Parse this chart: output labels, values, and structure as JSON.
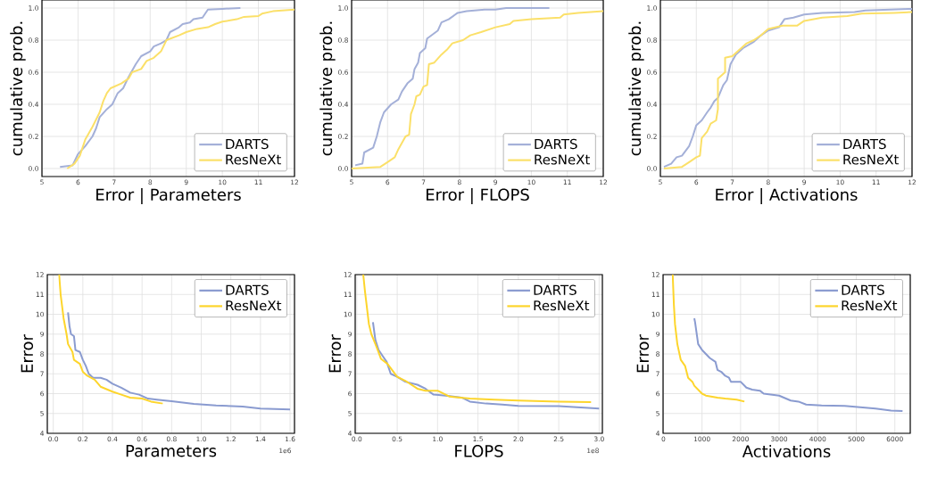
{
  "chart_data": [
    {
      "type": "line",
      "xlabel": "Error | Parameters",
      "ylabel": "cumulative prob.",
      "grid": true,
      "legend": "bottom right",
      "xlim": [
        5,
        12
      ],
      "ylim": [
        -0.05,
        1.05
      ],
      "xticks": [
        5,
        6,
        7,
        8,
        9,
        10,
        11,
        12
      ],
      "yticks": [
        {
          "value": 0,
          "label": "0.0"
        },
        {
          "value": 0.2,
          "label": "0.2"
        },
        {
          "value": 0.4,
          "label": "0.4"
        },
        {
          "value": 0.6,
          "label": "0.6"
        },
        {
          "value": 0.8,
          "label": "0.8"
        },
        {
          "value": 1,
          "label": "1.0"
        }
      ],
      "series": [
        {
          "name": "DARTS",
          "color": "#a4b0d8",
          "x": [
            5.5,
            5.85,
            6.0,
            6.2,
            6.4,
            6.5,
            6.6,
            6.8,
            6.95,
            7.1,
            7.25,
            7.4,
            7.5,
            7.6,
            7.75,
            8.0,
            8.1,
            8.3,
            8.45,
            8.55,
            8.8,
            8.9,
            9.1,
            9.2,
            9.45,
            9.6,
            10.0,
            10.5
          ],
          "values": [
            0.01,
            0.02,
            0.09,
            0.14,
            0.2,
            0.25,
            0.32,
            0.37,
            0.4,
            0.47,
            0.5,
            0.57,
            0.61,
            0.65,
            0.7,
            0.73,
            0.76,
            0.78,
            0.8,
            0.85,
            0.88,
            0.9,
            0.91,
            0.93,
            0.94,
            0.99,
            0.995,
            1.0
          ]
        },
        {
          "name": "ResNeXt",
          "color": "#fbe069",
          "x": [
            5.7,
            5.9,
            6.05,
            6.2,
            6.4,
            6.6,
            6.7,
            6.8,
            6.9,
            7.2,
            7.4,
            7.5,
            7.75,
            7.9,
            8.1,
            8.3,
            8.45,
            8.8,
            9.0,
            9.3,
            9.6,
            9.8,
            10.0,
            10.4,
            10.6,
            11.0,
            11.1,
            11.4,
            12.0
          ],
          "values": [
            0.0,
            0.03,
            0.08,
            0.18,
            0.26,
            0.35,
            0.42,
            0.47,
            0.5,
            0.53,
            0.56,
            0.6,
            0.62,
            0.67,
            0.69,
            0.73,
            0.8,
            0.83,
            0.85,
            0.87,
            0.88,
            0.9,
            0.915,
            0.93,
            0.945,
            0.95,
            0.965,
            0.98,
            0.99
          ]
        }
      ]
    },
    {
      "type": "line",
      "xlabel": "Error | FLOPS",
      "ylabel": "cumulative prob.",
      "grid": true,
      "legend": "bottom right",
      "xlim": [
        5,
        12
      ],
      "ylim": [
        -0.05,
        1.05
      ],
      "xticks": [
        5,
        6,
        7,
        8,
        9,
        10,
        11,
        12
      ],
      "yticks": [
        {
          "value": 0,
          "label": "0.0"
        },
        {
          "value": 0.2,
          "label": "0.2"
        },
        {
          "value": 0.4,
          "label": "0.4"
        },
        {
          "value": 0.6,
          "label": "0.6"
        },
        {
          "value": 0.8,
          "label": "0.8"
        },
        {
          "value": 1,
          "label": "1.0"
        }
      ],
      "series": [
        {
          "name": "DARTS",
          "color": "#a4b0d8",
          "x": [
            5.1,
            5.3,
            5.35,
            5.6,
            5.7,
            5.8,
            5.9,
            6.1,
            6.3,
            6.4,
            6.55,
            6.7,
            6.75,
            6.85,
            6.9,
            7.05,
            7.1,
            7.4,
            7.5,
            7.7,
            7.95,
            8.2,
            8.7,
            9.0,
            9.3,
            10.5
          ],
          "values": [
            0.02,
            0.03,
            0.1,
            0.13,
            0.2,
            0.29,
            0.35,
            0.4,
            0.43,
            0.48,
            0.53,
            0.56,
            0.62,
            0.66,
            0.72,
            0.75,
            0.81,
            0.86,
            0.91,
            0.93,
            0.97,
            0.98,
            0.99,
            0.99,
            1.0,
            1.0
          ]
        },
        {
          "name": "ResNeXt",
          "color": "#fbe069",
          "x": [
            5.0,
            5.8,
            6.0,
            6.2,
            6.3,
            6.5,
            6.6,
            6.65,
            6.75,
            6.8,
            6.9,
            7.0,
            7.1,
            7.15,
            7.3,
            7.5,
            7.65,
            7.8,
            8.1,
            8.3,
            8.6,
            9.0,
            9.4,
            9.5,
            10.0,
            10.8,
            10.9,
            11.3,
            12.0
          ],
          "values": [
            0.0,
            0.01,
            0.04,
            0.07,
            0.12,
            0.2,
            0.21,
            0.34,
            0.4,
            0.45,
            0.46,
            0.51,
            0.52,
            0.65,
            0.66,
            0.71,
            0.74,
            0.78,
            0.8,
            0.83,
            0.85,
            0.88,
            0.9,
            0.92,
            0.93,
            0.94,
            0.96,
            0.97,
            0.98
          ]
        }
      ]
    },
    {
      "type": "line",
      "xlabel": "Error | Activations",
      "ylabel": "cumulative prob.",
      "grid": true,
      "legend": "bottom right",
      "xlim": [
        5,
        12
      ],
      "ylim": [
        -0.05,
        1.05
      ],
      "xticks": [
        5,
        6,
        7,
        8,
        9,
        10,
        11,
        12
      ],
      "yticks": [
        {
          "value": 0,
          "label": "0.0"
        },
        {
          "value": 0.2,
          "label": "0.2"
        },
        {
          "value": 0.4,
          "label": "0.4"
        },
        {
          "value": 0.6,
          "label": "0.6"
        },
        {
          "value": 0.8,
          "label": "0.8"
        },
        {
          "value": 1,
          "label": "1.0"
        }
      ],
      "series": [
        {
          "name": "DARTS",
          "color": "#a4b0d8",
          "x": [
            5.1,
            5.3,
            5.45,
            5.6,
            5.8,
            5.9,
            6.0,
            6.15,
            6.3,
            6.4,
            6.5,
            6.6,
            6.75,
            6.85,
            6.95,
            7.1,
            7.3,
            7.6,
            7.8,
            8.0,
            8.3,
            8.45,
            8.7,
            9.0,
            9.5,
            10.4,
            10.7,
            12.0
          ],
          "values": [
            0.01,
            0.03,
            0.07,
            0.08,
            0.14,
            0.2,
            0.27,
            0.3,
            0.35,
            0.38,
            0.42,
            0.44,
            0.52,
            0.55,
            0.65,
            0.71,
            0.75,
            0.79,
            0.83,
            0.86,
            0.88,
            0.93,
            0.94,
            0.96,
            0.97,
            0.975,
            0.985,
            0.995
          ]
        },
        {
          "name": "ResNeXt",
          "color": "#fbe069",
          "x": [
            5.1,
            5.6,
            5.8,
            6.0,
            6.1,
            6.15,
            6.3,
            6.4,
            6.55,
            6.6,
            6.6,
            6.8,
            6.8,
            7.0,
            7.2,
            7.4,
            7.6,
            7.8,
            8.0,
            8.4,
            8.8,
            9.0,
            9.5,
            10.2,
            10.6,
            11.5,
            12.0
          ],
          "values": [
            0.0,
            0.01,
            0.04,
            0.07,
            0.08,
            0.19,
            0.23,
            0.28,
            0.3,
            0.37,
            0.56,
            0.6,
            0.69,
            0.7,
            0.74,
            0.78,
            0.8,
            0.83,
            0.87,
            0.89,
            0.89,
            0.92,
            0.94,
            0.95,
            0.965,
            0.97,
            0.975
          ]
        }
      ]
    },
    {
      "type": "line",
      "xlabel": "Parameters",
      "ylabel": "Error",
      "grid": true,
      "legend": "top right",
      "annotations": [
        "1e6"
      ],
      "xlim": [
        -0.04,
        1.63
      ],
      "ylim": [
        4,
        12
      ],
      "xticks": [
        {
          "value": 0,
          "label": "0.0"
        },
        {
          "value": 0.2,
          "label": "0.2"
        },
        {
          "value": 0.4,
          "label": "0.4"
        },
        {
          "value": 0.6,
          "label": "0.6"
        },
        {
          "value": 0.8,
          "label": "0.8"
        },
        {
          "value": 1,
          "label": "1.0"
        },
        {
          "value": 1.2,
          "label": "1.2"
        },
        {
          "value": 1.4,
          "label": "1.4"
        },
        {
          "value": 1.6,
          "label": "1.6"
        }
      ],
      "yticks": [
        4,
        5,
        6,
        7,
        8,
        9,
        10,
        11,
        12
      ],
      "series": [
        {
          "name": "DARTS",
          "color": "#8a9bd0",
          "x": [
            0.1,
            0.11,
            0.12,
            0.14,
            0.15,
            0.18,
            0.2,
            0.22,
            0.24,
            0.27,
            0.32,
            0.36,
            0.4,
            0.46,
            0.52,
            0.58,
            0.64,
            0.7,
            0.8,
            0.95,
            1.1,
            1.28,
            1.4,
            1.6
          ],
          "values": [
            10.1,
            9.4,
            9.0,
            8.9,
            8.2,
            8.1,
            7.7,
            7.4,
            7.0,
            6.8,
            6.8,
            6.7,
            6.5,
            6.3,
            6.05,
            5.95,
            5.75,
            5.7,
            5.62,
            5.48,
            5.4,
            5.35,
            5.25,
            5.2
          ]
        },
        {
          "name": "ResNeXt",
          "color": "#fdd52c",
          "x": [
            0.04,
            0.05,
            0.07,
            0.09,
            0.1,
            0.13,
            0.14,
            0.18,
            0.2,
            0.23,
            0.28,
            0.32,
            0.4,
            0.46,
            0.52,
            0.6,
            0.66,
            0.74
          ],
          "values": [
            12.0,
            11.0,
            9.8,
            9.0,
            8.5,
            8.1,
            7.7,
            7.5,
            7.1,
            6.9,
            6.7,
            6.35,
            6.1,
            5.95,
            5.8,
            5.75,
            5.6,
            5.5
          ]
        }
      ]
    },
    {
      "type": "line",
      "xlabel": "FLOPS",
      "ylabel": "Error",
      "grid": true,
      "legend": "top right",
      "annotations": [
        "1e8"
      ],
      "xlim": [
        -0.02,
        3.04
      ],
      "ylim": [
        4,
        12
      ],
      "xticks": [
        {
          "value": 0,
          "label": "0.0"
        },
        {
          "value": 0.5,
          "label": "0.5"
        },
        {
          "value": 1,
          "label": "1.0"
        },
        {
          "value": 1.5,
          "label": "1.5"
        },
        {
          "value": 2,
          "label": "2.0"
        },
        {
          "value": 2.5,
          "label": "2.5"
        },
        {
          "value": 3,
          "label": "3.0"
        }
      ],
      "yticks": [
        4,
        5,
        6,
        7,
        8,
        9,
        10,
        11,
        12
      ],
      "series": [
        {
          "name": "DARTS",
          "color": "#8a9bd0",
          "x": [
            0.2,
            0.23,
            0.27,
            0.32,
            0.37,
            0.42,
            0.5,
            0.6,
            0.75,
            0.85,
            0.95,
            1.1,
            1.3,
            1.4,
            1.6,
            1.8,
            2.0,
            2.5,
            3.0
          ],
          "values": [
            9.6,
            8.7,
            8.2,
            7.9,
            7.6,
            7.0,
            6.85,
            6.6,
            6.45,
            6.25,
            5.95,
            5.9,
            5.8,
            5.6,
            5.5,
            5.45,
            5.38,
            5.37,
            5.25
          ]
        },
        {
          "name": "ResNeXt",
          "color": "#fdd52c",
          "x": [
            0.08,
            0.1,
            0.15,
            0.18,
            0.2,
            0.25,
            0.3,
            0.38,
            0.5,
            0.6,
            0.75,
            0.85,
            1.0,
            1.15,
            1.4,
            1.7,
            2.0,
            2.5,
            2.9
          ],
          "values": [
            12.0,
            11.2,
            9.5,
            9.0,
            8.8,
            8.3,
            7.75,
            7.5,
            6.85,
            6.65,
            6.25,
            6.15,
            6.15,
            5.85,
            5.75,
            5.7,
            5.65,
            5.6,
            5.57
          ]
        }
      ]
    },
    {
      "type": "line",
      "xlabel": "Activations",
      "ylabel": "Error",
      "grid": true,
      "legend": "top right",
      "xlim": [
        -10,
        6400
      ],
      "ylim": [
        4,
        12
      ],
      "xticks": [
        0,
        1000,
        2000,
        3000,
        4000,
        5000,
        6000
      ],
      "yticks": [
        4,
        5,
        6,
        7,
        8,
        9,
        10,
        11,
        12
      ],
      "series": [
        {
          "name": "DARTS",
          "color": "#8a9bd0",
          "x": [
            800,
            820,
            900,
            1000,
            1100,
            1200,
            1350,
            1400,
            1500,
            1600,
            1700,
            1750,
            2000,
            2150,
            2300,
            2500,
            2600,
            3000,
            3300,
            3500,
            3700,
            4100,
            4700,
            5500,
            5900,
            6200
          ],
          "values": [
            9.8,
            9.6,
            8.5,
            8.2,
            8.0,
            7.8,
            7.6,
            7.2,
            7.1,
            6.9,
            6.8,
            6.6,
            6.6,
            6.3,
            6.2,
            6.15,
            6.0,
            5.9,
            5.65,
            5.6,
            5.45,
            5.4,
            5.38,
            5.25,
            5.15,
            5.12
          ]
        },
        {
          "name": "ResNeXt",
          "color": "#fdd52c",
          "x": [
            240,
            270,
            300,
            360,
            450,
            560,
            640,
            750,
            800,
            1000,
            1100,
            1400,
            1600,
            1900,
            2100
          ],
          "values": [
            12.0,
            10.5,
            9.5,
            8.5,
            7.7,
            7.4,
            6.8,
            6.6,
            6.4,
            6.0,
            5.9,
            5.8,
            5.75,
            5.7,
            5.6
          ]
        }
      ]
    }
  ]
}
